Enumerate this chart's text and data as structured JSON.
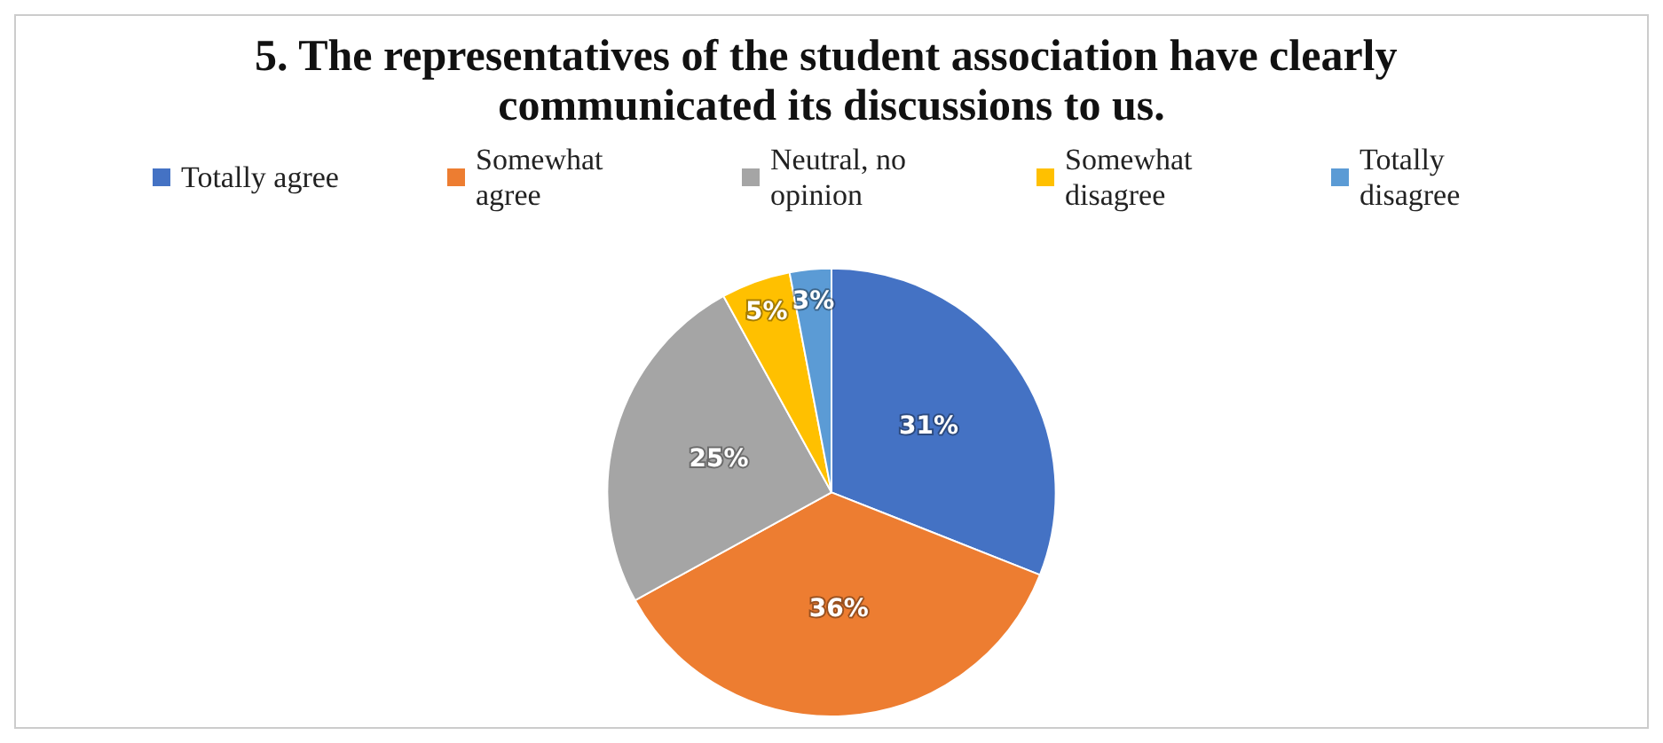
{
  "chart_data": {
    "type": "pie",
    "title": "5. The representatives of the student association have clearly communicated its discussions to us.",
    "categories": [
      "Totally agree",
      "Somewhat agree",
      "Neutral, no opinion",
      "Somewhat disagree",
      "Totally disagree"
    ],
    "values": [
      31,
      36,
      25,
      5,
      3
    ],
    "value_labels": [
      "31%",
      "36%",
      "25%",
      "5%",
      "3%"
    ],
    "colors": [
      "#4472c4",
      "#ed7d31",
      "#a5a5a5",
      "#ffc000",
      "#5b9bd5"
    ],
    "legend": "top"
  }
}
